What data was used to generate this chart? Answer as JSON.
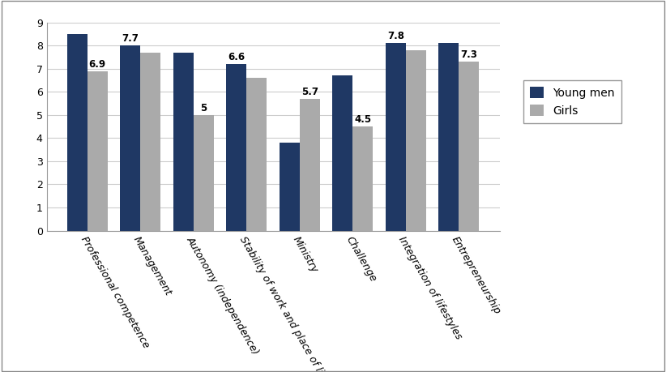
{
  "categories": [
    "Professional competence",
    "Management",
    "Autonomy (independence)",
    "Stability of work and place of living",
    "Ministry",
    "Challenge",
    "Integration of lifestyles",
    "Entrepreneurship"
  ],
  "young_men": [
    8.5,
    8.0,
    7.7,
    7.2,
    3.8,
    6.7,
    8.1,
    8.1
  ],
  "girls": [
    6.9,
    7.7,
    5.0,
    6.6,
    5.7,
    4.5,
    7.8,
    7.3
  ],
  "young_men_show": [
    null,
    "7.7",
    null,
    "6.6",
    null,
    null,
    "7.8",
    null
  ],
  "girls_show": [
    "6.9",
    null,
    "5",
    null,
    "5.7",
    "4.5",
    null,
    "7.3"
  ],
  "color_young_men": "#1F3864",
  "color_girls": "#AAAAAA",
  "ylim": [
    0,
    9
  ],
  "yticks": [
    0,
    1,
    2,
    3,
    4,
    5,
    6,
    7,
    8,
    9
  ],
  "legend_young_men": "Young men",
  "legend_girls": "Girls",
  "bar_width": 0.38,
  "label_fontsize": 8.5,
  "tick_fontsize": 9,
  "legend_fontsize": 10,
  "background_color": "#ffffff",
  "grid_color": "#cccccc",
  "figure_width": 8.22,
  "figure_height": 4.59
}
